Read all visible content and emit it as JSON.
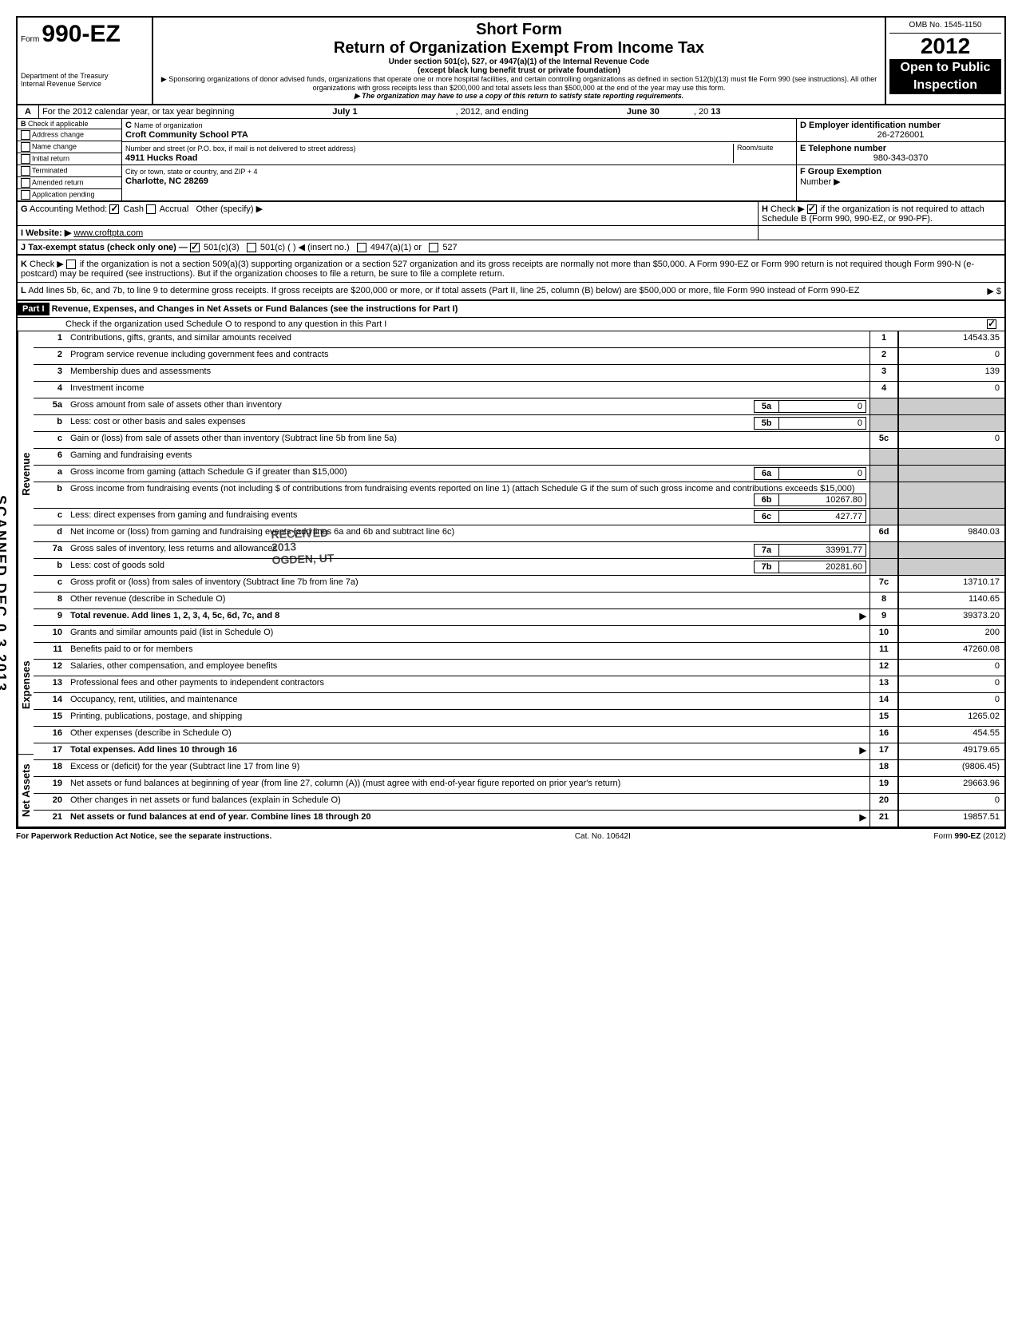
{
  "header": {
    "form_label": "Form",
    "form_number": "990-EZ",
    "short_form": "Short Form",
    "title": "Return of Organization Exempt From Income Tax",
    "subtitle1": "Under section 501(c), 527, or 4947(a)(1) of the Internal Revenue Code",
    "subtitle2": "(except black lung benefit trust or private foundation)",
    "sponsor_text": "▶ Sponsoring organizations of donor advised funds, organizations that operate one or more hospital facilities, and certain controlling organizations as defined in section 512(b)(13) must file Form 990 (see instructions). All other organizations with gross receipts less than $200,000 and total assets less than $500,000 at the end of the year may use this form.",
    "copy_text": "▶ The organization may have to use a copy of this return to satisfy state reporting requirements.",
    "dept": "Department of the Treasury",
    "irs": "Internal Revenue Service",
    "omb": "OMB No. 1545-1150",
    "year_prefix": "20",
    "year": "12",
    "open_public": "Open to Public",
    "inspection": "Inspection"
  },
  "section_a": {
    "label": "A",
    "text": "For the 2012 calendar year, or tax year beginning",
    "begin": "July 1",
    "mid": ", 2012, and ending",
    "end_month": "June 30",
    "end_year_prefix": ", 20",
    "end_year": "13"
  },
  "section_b": {
    "label": "B",
    "text": "Check if applicable",
    "items": [
      "Address change",
      "Name change",
      "Initial return",
      "Terminated",
      "Amended return",
      "Application pending"
    ]
  },
  "section_c": {
    "label": "C",
    "name_label": "Name of organization",
    "name": "Croft Community School PTA",
    "street_label": "Number and street (or P.O. box, if mail is not delivered to street address)",
    "room_label": "Room/suite",
    "street": "4911 Hucks Road",
    "city_label": "City or town, state or country, and ZIP + 4",
    "city": "Charlotte, NC 28269"
  },
  "section_d": {
    "label": "D Employer identification number",
    "value": "26-2726001"
  },
  "section_e": {
    "label": "E Telephone number",
    "value": "980-343-0370"
  },
  "section_f": {
    "label": "F Group Exemption",
    "number_label": "Number ▶"
  },
  "section_g": {
    "label": "G",
    "text": "Accounting Method:",
    "cash": "Cash",
    "accrual": "Accrual",
    "other": "Other (specify) ▶"
  },
  "section_h": {
    "label": "H",
    "text": "Check ▶",
    "text2": "if the organization is not required to attach Schedule B (Form 990, 990-EZ, or 990-PF)."
  },
  "section_i": {
    "label": "I",
    "text": "Website: ▶",
    "value": "www.croftpta.com"
  },
  "section_j": {
    "label": "J",
    "text": "Tax-exempt status (check only one) —",
    "opt1": "501(c)(3)",
    "opt2": "501(c) (",
    "insert": ") ◀ (insert no.)",
    "opt3": "4947(a)(1) or",
    "opt4": "527"
  },
  "section_k": {
    "label": "K",
    "text": "Check ▶",
    "text1": "if the organization is not a section 509(a)(3) supporting organization or a section 527 organization and its gross receipts are normally not more than $50,000. A Form 990-EZ or Form 990 return is not required though Form 990-N (e-postcard) may be required (see instructions). But if the organization chooses to file a return, be sure to file a complete return."
  },
  "section_l": {
    "label": "L",
    "text": "Add lines 5b, 6c, and 7b, to line 9 to determine gross receipts. If gross receipts are $200,000 or more, or if total assets (Part II, line 25, column (B) below) are $500,000 or more, file Form 990 instead of Form 990-EZ",
    "arrow": "▶ $"
  },
  "part1": {
    "label": "Part I",
    "title": "Revenue, Expenses, and Changes in Net Assets or Fund Balances (see the instructions for Part I)",
    "check_text": "Check if the organization used Schedule O to respond to any question in this Part I"
  },
  "sections": {
    "revenue": "Revenue",
    "expenses": "Expenses",
    "netassets": "Net Assets"
  },
  "lines": [
    {
      "n": "1",
      "desc": "Contributions, gifts, grants, and similar amounts received",
      "box": "1",
      "val": "14543.35"
    },
    {
      "n": "2",
      "desc": "Program service revenue including government fees and contracts",
      "box": "2",
      "val": "0"
    },
    {
      "n": "3",
      "desc": "Membership dues and assessments",
      "box": "3",
      "val": "139"
    },
    {
      "n": "4",
      "desc": "Investment income",
      "box": "4",
      "val": "0"
    },
    {
      "n": "5a",
      "desc": "Gross amount from sale of assets other than inventory",
      "ibox": "5a",
      "ival": "0"
    },
    {
      "n": "b",
      "desc": "Less: cost or other basis and sales expenses",
      "ibox": "5b",
      "ival": "0"
    },
    {
      "n": "c",
      "desc": "Gain or (loss) from sale of assets other than inventory (Subtract line 5b from line 5a)",
      "box": "5c",
      "val": "0"
    },
    {
      "n": "6",
      "desc": "Gaming and fundraising events"
    },
    {
      "n": "a",
      "desc": "Gross income from gaming (attach Schedule G if greater than $15,000)",
      "ibox": "6a",
      "ival": "0"
    },
    {
      "n": "b",
      "desc": "Gross income from fundraising events (not including $                of contributions from fundraising events reported on line 1) (attach Schedule G if the sum of such gross income and contributions exceeds $15,000)",
      "ibox": "6b",
      "ival": "10267.80"
    },
    {
      "n": "c",
      "desc": "Less: direct expenses from gaming and fundraising events",
      "ibox": "6c",
      "ival": "427.77"
    },
    {
      "n": "d",
      "desc": "Net income or (loss) from gaming and fundraising events (add lines 6a and 6b and subtract line 6c)",
      "box": "6d",
      "val": "9840.03"
    },
    {
      "n": "7a",
      "desc": "Gross sales of inventory, less returns and allowances",
      "ibox": "7a",
      "ival": "33991.77"
    },
    {
      "n": "b",
      "desc": "Less: cost of goods sold",
      "ibox": "7b",
      "ival": "20281.60"
    },
    {
      "n": "c",
      "desc": "Gross profit or (loss) from sales of inventory (Subtract line 7b from line 7a)",
      "box": "7c",
      "val": "13710.17"
    },
    {
      "n": "8",
      "desc": "Other revenue (describe in Schedule O)",
      "box": "8",
      "val": "1140.65"
    },
    {
      "n": "9",
      "desc": "Total revenue. Add lines 1, 2, 3, 4, 5c, 6d, 7c, and 8",
      "box": "9",
      "val": "39373.20",
      "arrow": true,
      "bold": true
    },
    {
      "n": "10",
      "desc": "Grants and similar amounts paid (list in Schedule O)",
      "box": "10",
      "val": "200"
    },
    {
      "n": "11",
      "desc": "Benefits paid to or for members",
      "box": "11",
      "val": "47260.08"
    },
    {
      "n": "12",
      "desc": "Salaries, other compensation, and employee benefits",
      "box": "12",
      "val": "0"
    },
    {
      "n": "13",
      "desc": "Professional fees and other payments to independent contractors",
      "box": "13",
      "val": "0"
    },
    {
      "n": "14",
      "desc": "Occupancy, rent, utilities, and maintenance",
      "box": "14",
      "val": "0"
    },
    {
      "n": "15",
      "desc": "Printing, publications, postage, and shipping",
      "box": "15",
      "val": "1265.02"
    },
    {
      "n": "16",
      "desc": "Other expenses (describe in Schedule O)",
      "box": "16",
      "val": "454.55"
    },
    {
      "n": "17",
      "desc": "Total expenses. Add lines 10 through 16",
      "box": "17",
      "val": "49179.65",
      "arrow": true,
      "bold": true
    },
    {
      "n": "18",
      "desc": "Excess or (deficit) for the year (Subtract line 17 from line 9)",
      "box": "18",
      "val": "(9806.45)"
    },
    {
      "n": "19",
      "desc": "Net assets or fund balances at beginning of year (from line 27, column (A)) (must agree with end-of-year figure reported on prior year's return)",
      "box": "19",
      "val": "29663.96"
    },
    {
      "n": "20",
      "desc": "Other changes in net assets or fund balances (explain in Schedule O)",
      "box": "20",
      "val": "0"
    },
    {
      "n": "21",
      "desc": "Net assets or fund balances at end of year. Combine lines 18 through 20",
      "box": "21",
      "val": "19857.51",
      "arrow": true,
      "bold": true
    }
  ],
  "footer": {
    "left": "For Paperwork Reduction Act Notice, see the separate instructions.",
    "mid": "Cat. No. 10642I",
    "right": "Form 990-EZ (2012)"
  },
  "stamp": {
    "l1": "RECEIVED",
    "l2": "2013",
    "l3": "OGDEN, UT"
  },
  "side": "SCANNED DEC 0 3 2013"
}
